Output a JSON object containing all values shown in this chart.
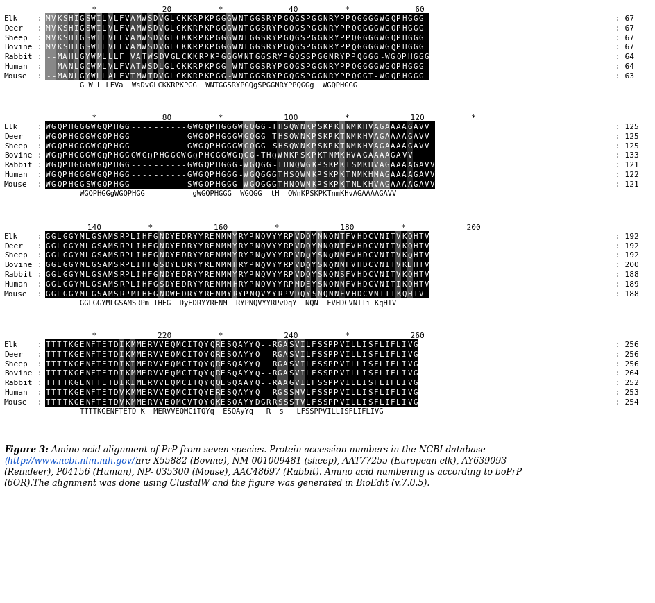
{
  "blocks": [
    {
      "ruler_nums": [
        [
          150,
          "20"
        ],
        [
          310,
          "40"
        ],
        [
          470,
          "*"
        ],
        [
          580,
          "60"
        ]
      ],
      "ruler_stars": [
        [
          120,
          "*"
        ],
        [
          340,
          "*"
        ],
        [
          470,
          "*"
        ]
      ],
      "ruler": "          *              20          *              40          *              60",
      "sequences": [
        {
          "name": "Elk",
          "seq": "MVKSHIGSWILVLFVAMWSDVGLCKKRPKPGGGWNTGGSRYPGQGSPGGNRYPPQGGGGWGQPHGGG",
          "num": 67
        },
        {
          "name": "Deer",
          "seq": "MVKSHIGSWILVLFVAMWSDVGLCKKRPKPGGGWNTGGSRYPGQGSPGGNRYPPQGGGGWGQPHGGG",
          "num": 67
        },
        {
          "name": "Sheep",
          "seq": "MVKSHIGSWILVLFVAMWSDVGLCKKRPKPGGGWNTGGSRYPGQGSPGGNRYPPQGGGGWGQPHGGG",
          "num": 67
        },
        {
          "name": "Bovine",
          "seq": "MVKSHIGSWILVLFVAMWSDVGLCKKRPKPGGGWNTGGSRYPGQGSPGGNRYPPQGGGGWGQPHGGG",
          "num": 67
        },
        {
          "name": "Rabbit",
          "seq": "--MAHLGYWMLLLF VATWSDVGLCKKRPKPGGGWNTGGSRYPGQSSPGGNRYPPQGGG-WGQPHGGG",
          "num": 64
        },
        {
          "name": "Human",
          "seq": "--MANLGCWMLVLFVATWSDLGLCKKRPKPGG-WNTGGSRYPGQGSPGGNRYPPQGGGGWGQPHGGG",
          "num": 64
        },
        {
          "name": "Mouse",
          "seq": "--MANLGYWLLALFVTMWTDVGLCKKRPKPGG-WNTGGSRYPGQGSPGGNRYPPQGGT-WGQPHGGG",
          "num": 63
        }
      ],
      "consensus": "        G W L LFVa  WsDvGLCKKRPKPGG  WNTGGSRYPGQgSPGGNRYPPQGGg  WGQPHGGG"
    },
    {
      "ruler": "          *              80          *             100          *             120          *",
      "sequences": [
        {
          "name": "Elk",
          "seq": "WGQPHGGGWGQPHGG----------GWGQPHGGGWGQGG-THSQWNKPSKPKTNMKHVAGAAAAGAVV",
          "num": 125
        },
        {
          "name": "Deer",
          "seq": "WGQPHGGGWGQPHGG----------GWGQPHGGGWGQGG-THSQWNKPSKPKTNMKHVAGAAAAGAVV",
          "num": 125
        },
        {
          "name": "Sheep",
          "seq": "WGQPHGGGWGQPHGG----------GWGQPHGGGWGQGG-SHSQWNKPSKPKTNMKHVAGAAAAGAVV",
          "num": 125
        },
        {
          "name": "Bovine",
          "seq": "WGQPHGGGWGQPHGGGWGQPHGGGWGQPHGGGWGQGG-THQWNKPSKPKTNMKHVAGAAAAGAVV",
          "num": 133
        },
        {
          "name": "Rabbit",
          "seq": "WGQPHGGGWGQPHGG----------GWGQPHGGG-WGQGG-THNQWGKPSKPKTSMKHVAGAAAAGAVV",
          "num": 121
        },
        {
          "name": "Human",
          "seq": "WGQPHGGGWGQPHGG----------GWGQPHGGG-WGQGGGTHSQWNKPSKPKTNMKHMAGAAAAGAVV",
          "num": 122
        },
        {
          "name": "Mouse",
          "seq": "WGQPHGGSWGQPHGG----------SWGQPHGGG-WGQGGGTHNQWNKPSKPKTNLKHVAGAAAAGAVV",
          "num": 121
        }
      ],
      "consensus": "        WGQPHGGgWGQPHGG           gWGQPHGGG  WGQGG  tH  QWnKPSKPKTnmKHvAGAAAAGAVV"
    },
    {
      "ruler": "         140          *             160          *             180          *             200",
      "sequences": [
        {
          "name": "Elk",
          "seq": "GGLGGYMLGSAMSRPLIHFGNDYEDRYYRENMMYRYPNQVYYRPVDQYNNQNTFVHDCVNITVKQHTV",
          "num": 192
        },
        {
          "name": "Deer",
          "seq": "GGLGGYMLGSAMSRPLIHFGNDYEDRYYRENMMYRYPNQVYYRPVDQYNNQNTFVHDCVNITVKQHTV",
          "num": 192
        },
        {
          "name": "Sheep",
          "seq": "GGLGGYMLGSAMSRPLIHFGNDYEDRYYRENMMYRYPNQVYYRPVDQYSNQNNFVHDCVNITVKQHTV",
          "num": 192
        },
        {
          "name": "Bovine",
          "seq": "GGLGGYMLGSAMSRPLIHFGSDYEDRYYRENMMHRYPNQVYYRPVDQYSNQNNFVHDCVNITVKEHTV",
          "num": 200
        },
        {
          "name": "Rabbit",
          "seq": "GGLGGYMLGSAMSRPLIHFGNDYEDRYYRENMMYRYPNQVYYRPVDQYSNQNSFVHDCVNITVKQHTV",
          "num": 188
        },
        {
          "name": "Human",
          "seq": "GGLGGYMLGSAMSRPLIHFGSDYEDRYYRENMMHRYPNQVYYRPMDEYSNQNNFVHDCVNITIKQHTV",
          "num": 189
        },
        {
          "name": "Mouse",
          "seq": "GGLGGYMLGSAMSRPMIHFGNDWEDRYYRENMYRYPNQVYYRPVDQYSNQNNFVHDCVNITIKQHTV",
          "num": 188
        }
      ],
      "consensus": "        GGLGGYMLGSAMSRPm IHFG  DyEDRYYRENM  RYPNQVYYRPvDqY  NQN  FVHDCVNITi KqHTV"
    },
    {
      "ruler": "          *             220          *             240          *             260",
      "sequences": [
        {
          "name": "Elk",
          "seq": "TTTTKGENFTETDIKMMERVVEQMCITQYQRESQAYYQ--RGASVILFSSPPVILLISFLIFLIVG",
          "num": 256
        },
        {
          "name": "Deer",
          "seq": "TTTTKGENFTETDIKMMERVVEQMCITQYQRESQAYYQ--RGASVILFSSPPVILLISFLIFLIVG",
          "num": 256
        },
        {
          "name": "Sheep",
          "seq": "TTTTKGENFTETDIKIMERVVEQMCITQYQRESQAYYQ--RGASVILFSSPPVILLISFLIFLIVG",
          "num": 256
        },
        {
          "name": "Bovine",
          "seq": "TTTTKGENFTETDIKMMERVVEQMCITQYQRESQAYYQ--RGASVILFSSPPVILLISFLIFLIVG",
          "num": 264
        },
        {
          "name": "Rabbit",
          "seq": "TTTTKGENFTETDIKIMERVVEQMCITQYQQESQAAYQ--RAAGVILFSSPPVILLISFLIFLIVG",
          "num": 252
        },
        {
          "name": "Human",
          "seq": "TTTTKGENFTETDVKMMERVVEQMCITQYERESQAYYQ--RGSSMVLFSSPPVILLISFLIFLIVG",
          "num": 253
        },
        {
          "name": "Mouse",
          "seq": "TTTTKGENFTETDVKMMERVVEQMCVTQYQKESQAYYDGRRSSSTVLFSSPPVILLISFLIFLIVG",
          "num": 254
        }
      ],
      "consensus": "        TTTTKGENFTETD K  MERVVEQMCiTQYq  ESQAyYq   R  s   LFSSPPVILLISFLIFLIVG"
    }
  ]
}
